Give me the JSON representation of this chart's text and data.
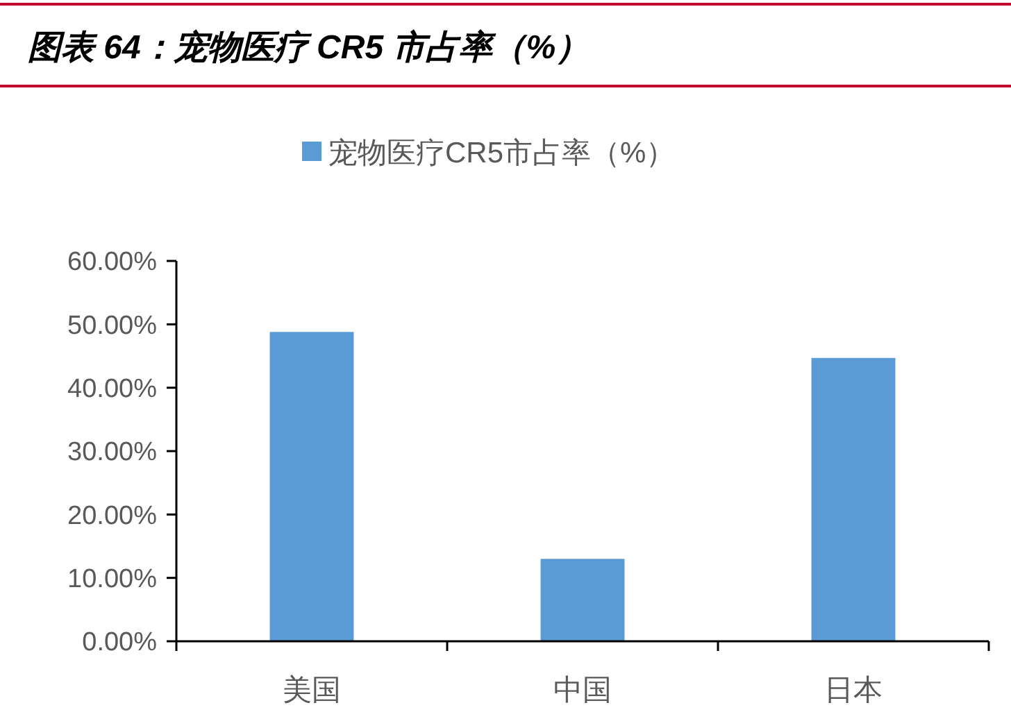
{
  "chart_data": {
    "type": "bar",
    "title": "图表 64：宠物医疗 CR5 市占率（%）",
    "categories": [
      "美国",
      "中国",
      "日本"
    ],
    "series": [
      {
        "name": "宠物医疗CR5市占率（%）",
        "color": "#5b9bd5",
        "values": [
          48.8,
          13.0,
          44.7
        ]
      }
    ],
    "ylim": [
      0,
      60
    ],
    "yticks": [
      {
        "value": 0,
        "label": "0.00%"
      },
      {
        "value": 10,
        "label": "10.00%"
      },
      {
        "value": 20,
        "label": "20.00%"
      },
      {
        "value": 30,
        "label": "30.00%"
      },
      {
        "value": 40,
        "label": "40.00%"
      },
      {
        "value": 50,
        "label": "50.00%"
      },
      {
        "value": 60,
        "label": "60.00%"
      }
    ],
    "legend": "top"
  }
}
